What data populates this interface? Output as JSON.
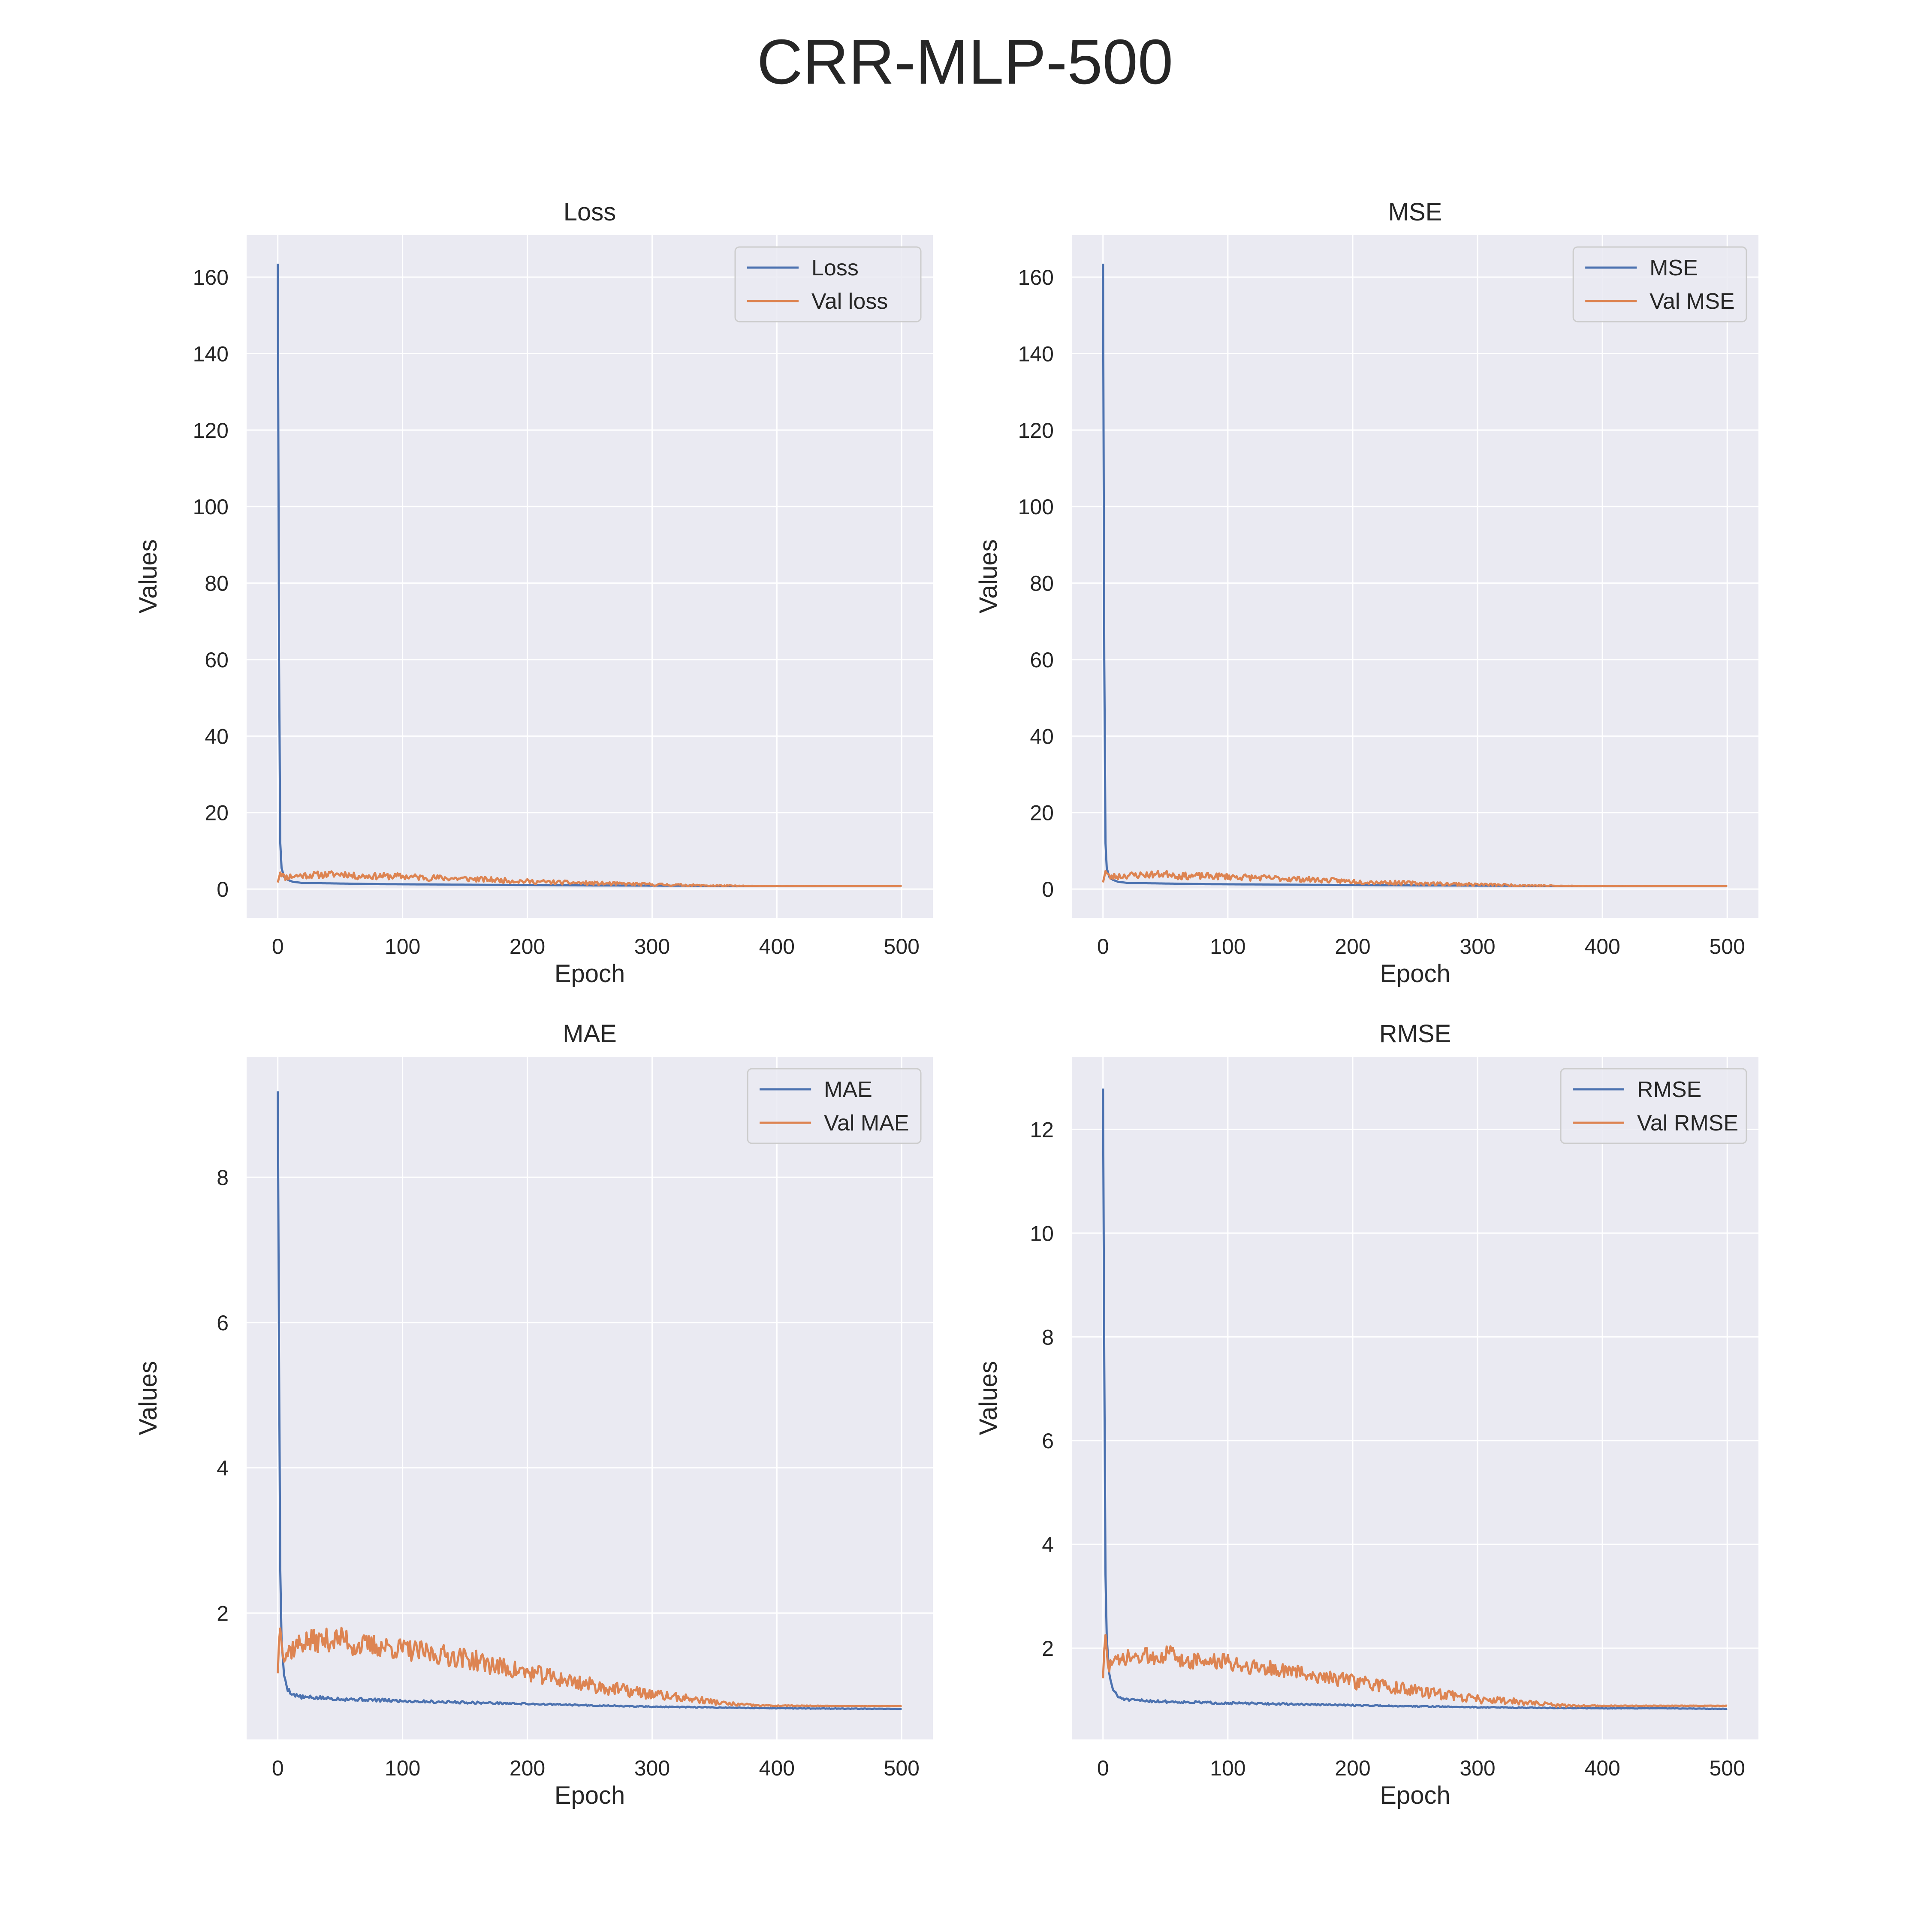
{
  "figure": {
    "title": "CRR-MLP-500"
  },
  "style": {
    "background": "#ffffff",
    "axes_facecolor": "#eaeaf2",
    "grid_color": "#ffffff",
    "text_color": "#262626",
    "series_colors": [
      "#4c72b0",
      "#dd8452"
    ]
  },
  "chart_data": [
    {
      "type": "line",
      "title": "Loss",
      "xlabel": "Epoch",
      "ylabel": "Values",
      "xlim": [
        -25,
        525
      ],
      "ylim": [
        -7.5,
        171
      ],
      "xticks": [
        0,
        100,
        200,
        300,
        400,
        500
      ],
      "yticks": [
        0,
        20,
        40,
        60,
        80,
        100,
        120,
        140,
        160
      ],
      "grid": true,
      "legend": "top-right",
      "series": [
        {
          "name": "Loss",
          "color": "#4c72b0",
          "points": [
            [
              0,
              163.5
            ],
            [
              1,
              60
            ],
            [
              2,
              12
            ],
            [
              3,
              5.5
            ],
            [
              5,
              3.2
            ],
            [
              8,
              2.4
            ],
            [
              12,
              1.9
            ],
            [
              20,
              1.6
            ],
            [
              40,
              1.5
            ],
            [
              60,
              1.4
            ],
            [
              80,
              1.3
            ],
            [
              100,
              1.25
            ],
            [
              150,
              1.15
            ],
            [
              200,
              1.05
            ],
            [
              250,
              0.95
            ],
            [
              300,
              0.9
            ],
            [
              350,
              0.85
            ],
            [
              400,
              0.8
            ],
            [
              450,
              0.78
            ],
            [
              500,
              0.75
            ]
          ]
        },
        {
          "name": "Val loss",
          "color": "#dd8452",
          "points": [
            [
              0,
              2.2
            ],
            [
              2,
              4.6
            ],
            [
              5,
              3.1
            ],
            [
              10,
              3.3
            ],
            [
              20,
              3.6
            ],
            [
              40,
              3.8
            ],
            [
              55,
              4.0
            ],
            [
              60,
              3.4
            ],
            [
              80,
              3.4
            ],
            [
              100,
              3.3
            ],
            [
              120,
              3.0
            ],
            [
              150,
              2.7
            ],
            [
              180,
              2.3
            ],
            [
              200,
              2.0
            ],
            [
              230,
              1.7
            ],
            [
              260,
              1.45
            ],
            [
              300,
              1.2
            ],
            [
              340,
              0.95
            ],
            [
              370,
              0.82
            ],
            [
              400,
              0.8
            ],
            [
              450,
              0.78
            ],
            [
              500,
              0.78
            ]
          ],
          "noise": [
            0.9,
            0.9,
            0.85,
            0.7,
            0.55,
            0.45,
            0.25,
            0.05,
            0.02,
            0.01
          ],
          "seed": 11
        }
      ]
    },
    {
      "type": "line",
      "title": "MSE",
      "xlabel": "Epoch",
      "ylabel": "Values",
      "xlim": [
        -25,
        525
      ],
      "ylim": [
        -7.5,
        171
      ],
      "xticks": [
        0,
        100,
        200,
        300,
        400,
        500
      ],
      "yticks": [
        0,
        20,
        40,
        60,
        80,
        100,
        120,
        140,
        160
      ],
      "grid": true,
      "legend": "top-right",
      "series": [
        {
          "name": "MSE",
          "color": "#4c72b0",
          "points": [
            [
              0,
              163.5
            ],
            [
              1,
              60
            ],
            [
              2,
              12
            ],
            [
              3,
              5.5
            ],
            [
              5,
              3.2
            ],
            [
              8,
              2.4
            ],
            [
              12,
              1.9
            ],
            [
              20,
              1.6
            ],
            [
              40,
              1.5
            ],
            [
              60,
              1.4
            ],
            [
              80,
              1.3
            ],
            [
              100,
              1.25
            ],
            [
              150,
              1.15
            ],
            [
              200,
              1.05
            ],
            [
              250,
              0.95
            ],
            [
              300,
              0.9
            ],
            [
              350,
              0.85
            ],
            [
              400,
              0.8
            ],
            [
              450,
              0.78
            ],
            [
              500,
              0.75
            ]
          ]
        },
        {
          "name": "Val MSE",
          "color": "#dd8452",
          "points": [
            [
              0,
              2.2
            ],
            [
              2,
              4.6
            ],
            [
              5,
              3.1
            ],
            [
              10,
              3.3
            ],
            [
              20,
              3.6
            ],
            [
              40,
              3.8
            ],
            [
              55,
              4.0
            ],
            [
              60,
              3.4
            ],
            [
              80,
              3.4
            ],
            [
              100,
              3.3
            ],
            [
              120,
              3.0
            ],
            [
              150,
              2.7
            ],
            [
              180,
              2.3
            ],
            [
              200,
              2.0
            ],
            [
              230,
              1.7
            ],
            [
              260,
              1.45
            ],
            [
              300,
              1.2
            ],
            [
              340,
              0.95
            ],
            [
              370,
              0.82
            ],
            [
              400,
              0.8
            ],
            [
              450,
              0.78
            ],
            [
              500,
              0.78
            ]
          ],
          "noise": [
            0.9,
            0.9,
            0.85,
            0.7,
            0.55,
            0.45,
            0.25,
            0.05,
            0.02,
            0.01
          ],
          "seed": 23
        }
      ]
    },
    {
      "type": "line",
      "title": "MAE",
      "xlabel": "Epoch",
      "ylabel": "Values",
      "xlim": [
        -25,
        525
      ],
      "ylim": [
        0.26,
        9.66
      ],
      "xticks": [
        0,
        100,
        200,
        300,
        400,
        500
      ],
      "yticks": [
        2,
        4,
        6,
        8
      ],
      "grid": true,
      "legend": "top-right",
      "series": [
        {
          "name": "MAE",
          "color": "#4c72b0",
          "points": [
            [
              0,
              9.2
            ],
            [
              1,
              5.5
            ],
            [
              2,
              2.6
            ],
            [
              3,
              1.6
            ],
            [
              5,
              1.15
            ],
            [
              8,
              0.95
            ],
            [
              12,
              0.88
            ],
            [
              20,
              0.84
            ],
            [
              50,
              0.82
            ],
            [
              100,
              0.79
            ],
            [
              150,
              0.77
            ],
            [
              200,
              0.75
            ],
            [
              250,
              0.73
            ],
            [
              300,
              0.71
            ],
            [
              350,
              0.7
            ],
            [
              400,
              0.69
            ],
            [
              450,
              0.685
            ],
            [
              500,
              0.68
            ]
          ],
          "noise": [
            0.03,
            0.025,
            0.02,
            0.015,
            0.01,
            0.008,
            0.006,
            0.005,
            0.004,
            0.003
          ],
          "seed": 5
        },
        {
          "name": "Val MAE",
          "color": "#dd8452",
          "points": [
            [
              0,
              1.25
            ],
            [
              2,
              1.9
            ],
            [
              5,
              1.4
            ],
            [
              10,
              1.5
            ],
            [
              20,
              1.6
            ],
            [
              40,
              1.63
            ],
            [
              55,
              1.65
            ],
            [
              60,
              1.55
            ],
            [
              80,
              1.55
            ],
            [
              100,
              1.5
            ],
            [
              120,
              1.45
            ],
            [
              150,
              1.38
            ],
            [
              180,
              1.25
            ],
            [
              200,
              1.18
            ],
            [
              230,
              1.08
            ],
            [
              260,
              0.98
            ],
            [
              300,
              0.88
            ],
            [
              340,
              0.8
            ],
            [
              360,
              0.75
            ],
            [
              380,
              0.73
            ],
            [
              400,
              0.725
            ],
            [
              450,
              0.72
            ],
            [
              500,
              0.72
            ]
          ],
          "noise": [
            0.16,
            0.16,
            0.15,
            0.14,
            0.12,
            0.09,
            0.05,
            0.01,
            0.004,
            0.003
          ],
          "seed": 37
        }
      ]
    },
    {
      "type": "line",
      "title": "RMSE",
      "xlabel": "Epoch",
      "ylabel": "Values",
      "xlim": [
        -25,
        525
      ],
      "ylim": [
        0.24,
        13.4
      ],
      "xticks": [
        0,
        100,
        200,
        300,
        400,
        500
      ],
      "yticks": [
        2,
        4,
        6,
        8,
        10,
        12
      ],
      "grid": true,
      "legend": "top-right",
      "series": [
        {
          "name": "RMSE",
          "color": "#4c72b0",
          "points": [
            [
              0,
              12.8
            ],
            [
              1,
              7.5
            ],
            [
              2,
              3.4
            ],
            [
              3,
              2.2
            ],
            [
              5,
              1.5
            ],
            [
              8,
              1.2
            ],
            [
              12,
              1.06
            ],
            [
              20,
              1.0
            ],
            [
              50,
              0.97
            ],
            [
              100,
              0.94
            ],
            [
              150,
              0.92
            ],
            [
              200,
              0.9
            ],
            [
              250,
              0.88
            ],
            [
              300,
              0.86
            ],
            [
              350,
              0.85
            ],
            [
              400,
              0.84
            ],
            [
              450,
              0.84
            ],
            [
              500,
              0.83
            ]
          ],
          "noise": [
            0.03,
            0.025,
            0.02,
            0.015,
            0.012,
            0.01,
            0.008,
            0.006,
            0.004,
            0.003
          ],
          "seed": 51
        },
        {
          "name": "Val RMSE",
          "color": "#dd8452",
          "points": [
            [
              0,
              1.5
            ],
            [
              2,
              2.15
            ],
            [
              5,
              1.65
            ],
            [
              10,
              1.7
            ],
            [
              20,
              1.8
            ],
            [
              40,
              1.85
            ],
            [
              55,
              1.9
            ],
            [
              60,
              1.78
            ],
            [
              80,
              1.75
            ],
            [
              100,
              1.72
            ],
            [
              120,
              1.65
            ],
            [
              150,
              1.55
            ],
            [
              180,
              1.45
            ],
            [
              200,
              1.35
            ],
            [
              230,
              1.25
            ],
            [
              260,
              1.15
            ],
            [
              300,
              1.02
            ],
            [
              340,
              0.95
            ],
            [
              360,
              0.9
            ],
            [
              380,
              0.89
            ],
            [
              400,
              0.89
            ],
            [
              450,
              0.89
            ],
            [
              500,
              0.89
            ]
          ],
          "noise": [
            0.17,
            0.17,
            0.16,
            0.15,
            0.13,
            0.1,
            0.06,
            0.01,
            0.004,
            0.003
          ],
          "seed": 73
        }
      ]
    }
  ]
}
